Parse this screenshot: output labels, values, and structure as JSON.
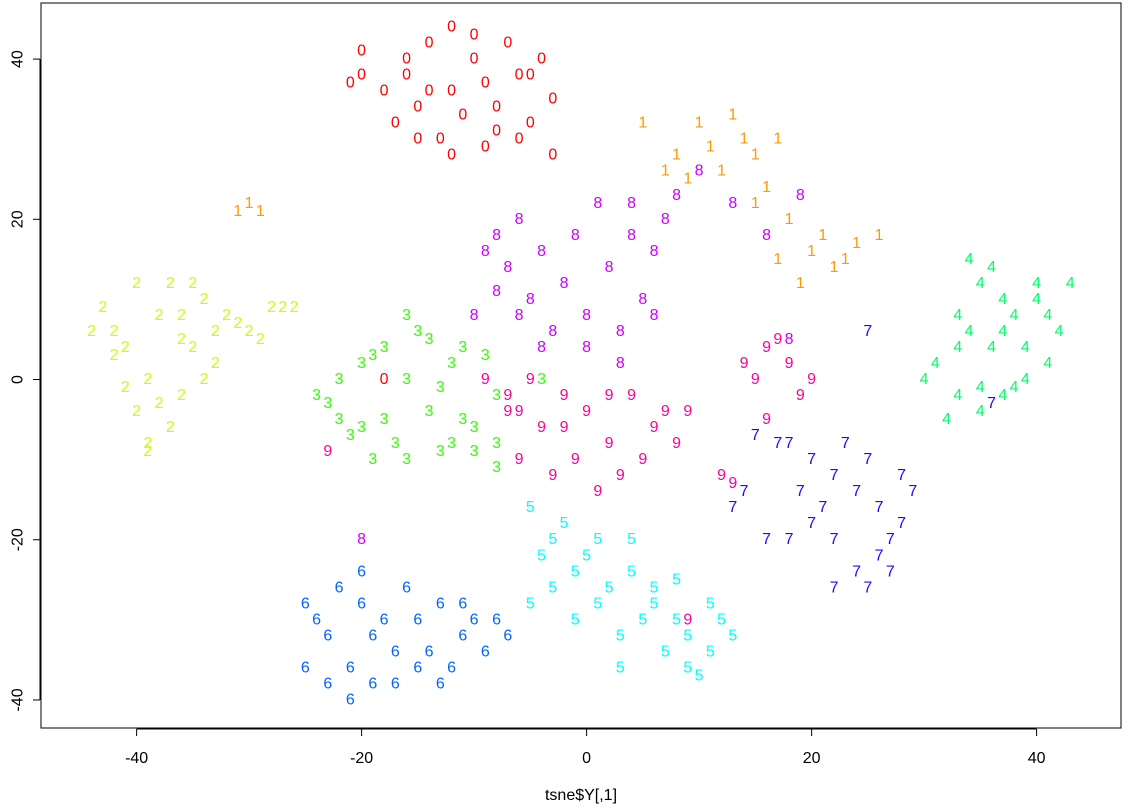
{
  "chart_data": {
    "type": "scatter",
    "title": "",
    "xlabel": "tsne$Y[,1]",
    "ylabel": "",
    "xlim": [
      -48.5,
      47.5
    ],
    "ylim": [
      -43.5,
      47
    ],
    "x_ticks": [
      "-40",
      "-20",
      "0",
      "20",
      "40"
    ],
    "x_tick_values": [
      -40,
      -20,
      0,
      20,
      40
    ],
    "y_ticks": [
      "-40",
      "-20",
      "0",
      "20",
      "40"
    ],
    "y_tick_values": [
      -40,
      -20,
      0,
      20,
      40
    ],
    "grid": false,
    "legend": "none",
    "series": [
      {
        "name": "0",
        "color": "#FF0000",
        "points": [
          [
            -16,
            38
          ],
          [
            -14,
            42
          ],
          [
            -12,
            36
          ],
          [
            -10,
            40
          ],
          [
            -8,
            34
          ],
          [
            -6,
            38
          ],
          [
            -5,
            32
          ],
          [
            -13,
            30
          ],
          [
            -9,
            29
          ],
          [
            -11,
            33
          ],
          [
            -15,
            34
          ],
          [
            -18,
            36
          ],
          [
            -20,
            38
          ],
          [
            -7,
            42
          ],
          [
            -4,
            40
          ],
          [
            -3,
            35
          ],
          [
            -12,
            28
          ],
          [
            -17,
            32
          ],
          [
            -9,
            37
          ],
          [
            -14,
            36
          ],
          [
            -6,
            30
          ],
          [
            -10,
            43
          ],
          [
            -16,
            40
          ],
          [
            -21,
            37
          ],
          [
            -15,
            30
          ],
          [
            -8,
            31
          ],
          [
            -12,
            44
          ],
          [
            -5,
            38
          ],
          [
            -18,
            0
          ],
          [
            -20,
            41
          ],
          [
            -3,
            28
          ]
        ]
      },
      {
        "name": "1",
        "color": "#FF9900",
        "points": [
          [
            8,
            28
          ],
          [
            10,
            32
          ],
          [
            12,
            26
          ],
          [
            14,
            30
          ],
          [
            16,
            24
          ],
          [
            18,
            20
          ],
          [
            20,
            16
          ],
          [
            22,
            14
          ],
          [
            24,
            17
          ],
          [
            26,
            18
          ],
          [
            15,
            22
          ],
          [
            17,
            15
          ],
          [
            11,
            29
          ],
          [
            13,
            33
          ],
          [
            19,
            12
          ],
          [
            21,
            18
          ],
          [
            9,
            25
          ],
          [
            7,
            26
          ],
          [
            -30,
            22
          ],
          [
            -31,
            21
          ],
          [
            -29,
            21
          ],
          [
            17,
            30
          ],
          [
            23,
            15
          ],
          [
            5,
            32
          ],
          [
            15,
            28
          ]
        ]
      },
      {
        "name": "2",
        "color": "#CCFF00",
        "points": [
          [
            -40,
            12
          ],
          [
            -38,
            8
          ],
          [
            -41,
            4
          ],
          [
            -39,
            0
          ],
          [
            -40,
            -4
          ],
          [
            -37,
            -6
          ],
          [
            -39,
            -8
          ],
          [
            -36,
            8
          ],
          [
            -34,
            10
          ],
          [
            -32,
            8
          ],
          [
            -30,
            6
          ],
          [
            -28,
            9
          ],
          [
            -35,
            4
          ],
          [
            -33,
            2
          ],
          [
            -36,
            -2
          ],
          [
            -38,
            -3
          ],
          [
            -41,
            -1
          ],
          [
            -42,
            6
          ],
          [
            -43,
            9
          ],
          [
            -44,
            6
          ],
          [
            -37,
            12
          ],
          [
            -35,
            12
          ],
          [
            -31,
            7
          ],
          [
            -29,
            5
          ],
          [
            -27,
            9
          ],
          [
            -26,
            9
          ],
          [
            -39,
            -9
          ],
          [
            -34,
            0
          ],
          [
            -36,
            5
          ],
          [
            -33,
            6
          ],
          [
            -42,
            3
          ]
        ]
      },
      {
        "name": "3",
        "color": "#33FF00",
        "points": [
          [
            -24,
            -2
          ],
          [
            -22,
            -5
          ],
          [
            -20,
            2
          ],
          [
            -18,
            4
          ],
          [
            -16,
            0
          ],
          [
            -14,
            -4
          ],
          [
            -12,
            -8
          ],
          [
            -10,
            -6
          ],
          [
            -8,
            -2
          ],
          [
            -9,
            3
          ],
          [
            -11,
            4
          ],
          [
            -15,
            6
          ],
          [
            -17,
            -8
          ],
          [
            -19,
            -10
          ],
          [
            -21,
            -7
          ],
          [
            -23,
            -3
          ],
          [
            -13,
            -1
          ],
          [
            -11,
            -5
          ],
          [
            -16,
            8
          ],
          [
            -14,
            5
          ],
          [
            -12,
            2
          ],
          [
            -18,
            -5
          ],
          [
            -22,
            0
          ],
          [
            -10,
            -9
          ],
          [
            -8,
            -11
          ],
          [
            -4,
            0
          ],
          [
            -8,
            -8
          ],
          [
            -16,
            -10
          ],
          [
            -19,
            3
          ],
          [
            -13,
            -9
          ],
          [
            -20,
            -6
          ]
        ]
      },
      {
        "name": "4",
        "color": "#00FF66",
        "points": [
          [
            33,
            8
          ],
          [
            35,
            12
          ],
          [
            37,
            10
          ],
          [
            39,
            4
          ],
          [
            41,
            8
          ],
          [
            43,
            12
          ],
          [
            31,
            2
          ],
          [
            33,
            -2
          ],
          [
            35,
            -4
          ],
          [
            37,
            -2
          ],
          [
            39,
            0
          ],
          [
            41,
            2
          ],
          [
            34,
            6
          ],
          [
            36,
            4
          ],
          [
            38,
            8
          ],
          [
            40,
            12
          ],
          [
            42,
            6
          ],
          [
            32,
            -5
          ],
          [
            34,
            15
          ],
          [
            36,
            14
          ],
          [
            38,
            -1
          ],
          [
            30,
            0
          ],
          [
            33,
            4
          ],
          [
            40,
            10
          ],
          [
            35,
            -1
          ],
          [
            37,
            6
          ]
        ]
      },
      {
        "name": "5",
        "color": "#00FFFF",
        "points": [
          [
            -5,
            -16
          ],
          [
            -3,
            -20
          ],
          [
            -1,
            -24
          ],
          [
            1,
            -28
          ],
          [
            3,
            -32
          ],
          [
            5,
            -30
          ],
          [
            7,
            -34
          ],
          [
            9,
            -36
          ],
          [
            11,
            -34
          ],
          [
            13,
            -32
          ],
          [
            -2,
            -18
          ],
          [
            0,
            -22
          ],
          [
            2,
            -26
          ],
          [
            4,
            -24
          ],
          [
            6,
            -28
          ],
          [
            8,
            -30
          ],
          [
            10,
            -37
          ],
          [
            -4,
            -22
          ],
          [
            -1,
            -30
          ],
          [
            3,
            -36
          ],
          [
            6,
            -26
          ],
          [
            9,
            -32
          ],
          [
            12,
            -30
          ],
          [
            1,
            -20
          ],
          [
            -3,
            -26
          ],
          [
            4,
            -20
          ],
          [
            8,
            -25
          ],
          [
            11,
            -28
          ],
          [
            -5,
            -28
          ]
        ]
      },
      {
        "name": "6",
        "color": "#0066FF",
        "points": [
          [
            -25,
            -28
          ],
          [
            -23,
            -32
          ],
          [
            -21,
            -36
          ],
          [
            -19,
            -38
          ],
          [
            -17,
            -34
          ],
          [
            -15,
            -30
          ],
          [
            -13,
            -28
          ],
          [
            -11,
            -32
          ],
          [
            -9,
            -34
          ],
          [
            -7,
            -32
          ],
          [
            -24,
            -30
          ],
          [
            -22,
            -26
          ],
          [
            -20,
            -28
          ],
          [
            -18,
            -30
          ],
          [
            -16,
            -26
          ],
          [
            -14,
            -34
          ],
          [
            -12,
            -36
          ],
          [
            -10,
            -30
          ],
          [
            -25,
            -36
          ],
          [
            -21,
            -40
          ],
          [
            -17,
            -38
          ],
          [
            -13,
            -38
          ],
          [
            -23,
            -38
          ],
          [
            -19,
            -32
          ],
          [
            -15,
            -36
          ],
          [
            -11,
            -28
          ],
          [
            -8,
            -30
          ],
          [
            -20,
            -24
          ]
        ]
      },
      {
        "name": "7",
        "color": "#3300FF",
        "points": [
          [
            18,
            -8
          ],
          [
            20,
            -10
          ],
          [
            22,
            -12
          ],
          [
            24,
            -14
          ],
          [
            26,
            -16
          ],
          [
            28,
            -18
          ],
          [
            20,
            -18
          ],
          [
            22,
            -20
          ],
          [
            24,
            -24
          ],
          [
            26,
            -22
          ],
          [
            28,
            -12
          ],
          [
            19,
            -14
          ],
          [
            21,
            -16
          ],
          [
            23,
            -8
          ],
          [
            25,
            -10
          ],
          [
            27,
            -20
          ],
          [
            22,
            -26
          ],
          [
            25,
            -26
          ],
          [
            18,
            -20
          ],
          [
            16,
            -20
          ],
          [
            14,
            -14
          ],
          [
            13,
            -16
          ],
          [
            15,
            -7
          ],
          [
            17,
            -8
          ],
          [
            29,
            -14
          ],
          [
            27,
            -24
          ],
          [
            36,
            -3
          ],
          [
            25,
            6
          ]
        ]
      },
      {
        "name": "8",
        "color": "#CC00FF",
        "points": [
          [
            -6,
            20
          ],
          [
            -4,
            16
          ],
          [
            -2,
            12
          ],
          [
            0,
            8
          ],
          [
            2,
            14
          ],
          [
            4,
            18
          ],
          [
            5,
            10
          ],
          [
            3,
            6
          ],
          [
            -3,
            6
          ],
          [
            -5,
            10
          ],
          [
            -7,
            14
          ],
          [
            -8,
            18
          ],
          [
            -1,
            18
          ],
          [
            1,
            22
          ],
          [
            4,
            22
          ],
          [
            6,
            16
          ],
          [
            -9,
            16
          ],
          [
            -10,
            8
          ],
          [
            -4,
            4
          ],
          [
            0,
            4
          ],
          [
            6,
            8
          ],
          [
            -6,
            8
          ],
          [
            7,
            20
          ],
          [
            8,
            23
          ],
          [
            10,
            26
          ],
          [
            13,
            22
          ],
          [
            16,
            18
          ],
          [
            19,
            23
          ],
          [
            18,
            5
          ],
          [
            -20,
            -20
          ],
          [
            -8,
            11
          ],
          [
            3,
            2
          ]
        ]
      },
      {
        "name": "9",
        "color": "#FF0099",
        "points": [
          [
            -6,
            -10
          ],
          [
            -4,
            -6
          ],
          [
            -2,
            -2
          ],
          [
            0,
            -4
          ],
          [
            2,
            -8
          ],
          [
            4,
            -2
          ],
          [
            6,
            -6
          ],
          [
            8,
            -8
          ],
          [
            -3,
            -12
          ],
          [
            -1,
            -10
          ],
          [
            1,
            -14
          ],
          [
            3,
            -12
          ],
          [
            5,
            -10
          ],
          [
            7,
            -4
          ],
          [
            -6,
            -4
          ],
          [
            -2,
            -6
          ],
          [
            2,
            -2
          ],
          [
            9,
            -4
          ],
          [
            -5,
            0
          ],
          [
            -7,
            -4
          ],
          [
            14,
            2
          ],
          [
            16,
            4
          ],
          [
            18,
            2
          ],
          [
            19,
            -2
          ],
          [
            20,
            0
          ],
          [
            15,
            0
          ],
          [
            17,
            5
          ],
          [
            12,
            -12
          ],
          [
            13,
            -13
          ],
          [
            16,
            -5
          ],
          [
            -23,
            -9
          ],
          [
            9,
            -30
          ],
          [
            -9,
            0
          ],
          [
            -7,
            -2
          ]
        ]
      }
    ]
  }
}
